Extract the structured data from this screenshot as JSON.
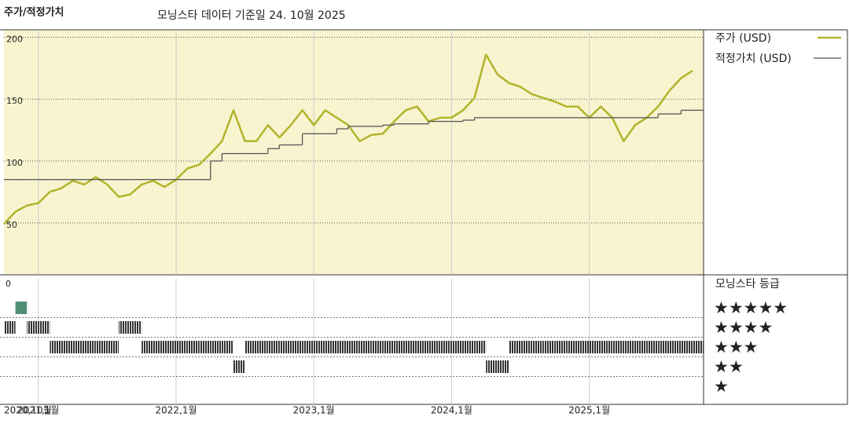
{
  "chart_data": {
    "type": "line",
    "title": "주가/적정가치",
    "subtitle": "모닝스타 데이터 기준일 24. 10월 2025",
    "x": [
      "2020-10",
      "2020-11",
      "2020-12",
      "2021-01",
      "2021-02",
      "2021-03",
      "2021-04",
      "2021-05",
      "2021-06",
      "2021-07",
      "2021-08",
      "2021-09",
      "2021-10",
      "2021-11",
      "2021-12",
      "2022-01",
      "2022-02",
      "2022-03",
      "2022-04",
      "2022-05",
      "2022-06",
      "2022-07",
      "2022-08",
      "2022-09",
      "2022-10",
      "2022-11",
      "2022-12",
      "2023-01",
      "2023-02",
      "2023-03",
      "2023-04",
      "2023-05",
      "2023-06",
      "2023-07",
      "2023-08",
      "2023-09",
      "2023-10",
      "2023-11",
      "2023-12",
      "2024-01",
      "2024-02",
      "2024-03",
      "2024-04",
      "2024-05",
      "2024-06",
      "2024-07",
      "2024-08",
      "2024-09",
      "2024-10",
      "2024-11",
      "2024-12",
      "2025-01",
      "2025-02",
      "2025-03",
      "2025-04",
      "2025-05",
      "2025-06",
      "2025-07",
      "2025-08",
      "2025-09",
      "2025-10"
    ],
    "series": [
      {
        "name": "주가 (USD)",
        "color": "#b3b32b",
        "values": [
          49,
          59,
          64,
          66,
          75,
          78,
          84,
          81,
          87,
          81,
          71,
          73,
          81,
          84,
          79,
          85,
          94,
          97,
          106,
          116,
          141,
          116,
          116,
          129,
          119,
          129,
          141,
          129,
          141,
          135,
          129,
          116,
          121,
          122,
          132,
          141,
          144,
          132,
          135,
          135,
          141,
          151,
          186,
          170,
          163,
          160,
          154,
          151,
          148,
          144,
          144,
          135,
          144,
          135,
          116,
          129,
          135,
          144,
          157,
          167,
          173
        ]
      },
      {
        "name": "적정가치 (USD)",
        "color": "#555555",
        "step": true,
        "values": [
          85,
          85,
          85,
          85,
          85,
          85,
          85,
          85,
          85,
          85,
          85,
          85,
          85,
          85,
          85,
          85,
          85,
          85,
          100,
          106,
          106,
          106,
          106,
          110,
          113,
          113,
          122,
          122,
          122,
          126,
          128,
          128,
          128,
          129,
          130,
          130,
          130,
          132,
          132,
          132,
          133,
          135,
          135,
          135,
          135,
          135,
          135,
          135,
          135,
          135,
          135,
          135,
          135,
          135,
          135,
          135,
          135,
          138,
          138,
          141,
          141
        ]
      }
    ],
    "xlim": [
      "2020-10",
      "2025-10"
    ],
    "xticks": [
      {
        "value": "2020-10",
        "label": "2020,10월"
      },
      {
        "value": "2021-01",
        "label": "2021,1월"
      },
      {
        "value": "2022-01",
        "label": "2022,1월"
      },
      {
        "value": "2023-01",
        "label": "2023,1월"
      },
      {
        "value": "2024-01",
        "label": "2024,1월"
      },
      {
        "value": "2025-01",
        "label": "2025,1월"
      }
    ],
    "ylim": [
      8,
      206
    ],
    "yticks": [
      50,
      100,
      150,
      200
    ],
    "grid": true,
    "rating": {
      "title": "모닝스타 등급",
      "yticks": [
        0
      ],
      "levels": [
        {
          "value": 5,
          "label": "★★★★★"
        },
        {
          "value": 4,
          "label": "★★★★"
        },
        {
          "value": 3,
          "label": "★★★"
        },
        {
          "value": 2,
          "label": "★★"
        },
        {
          "value": 1,
          "label": "★"
        }
      ],
      "values": [
        4,
        5,
        4,
        4,
        3,
        3,
        3,
        3,
        3,
        3,
        4,
        4,
        3,
        3,
        3,
        3,
        3,
        3,
        3,
        3,
        2,
        3,
        3,
        3,
        3,
        3,
        3,
        3,
        3,
        3,
        3,
        3,
        3,
        3,
        3,
        3,
        3,
        3,
        3,
        3,
        3,
        3,
        2,
        2,
        3,
        3,
        3,
        3,
        3,
        3,
        3,
        3,
        3,
        3,
        3,
        3,
        3,
        3,
        3,
        3,
        3
      ],
      "color": "#333333",
      "top_color": "#4f8f73"
    }
  }
}
